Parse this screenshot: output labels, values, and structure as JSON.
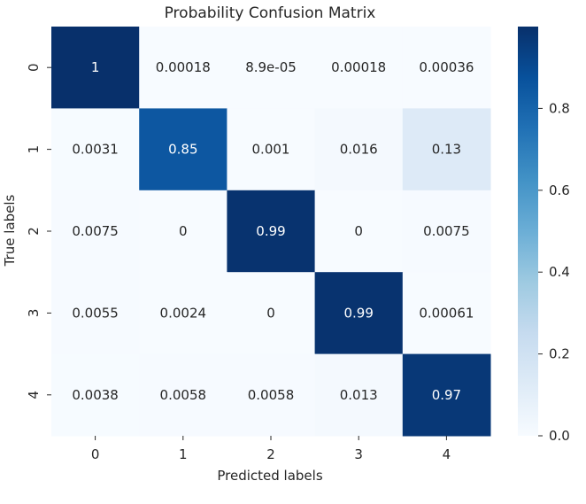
{
  "chart_data": {
    "type": "heatmap",
    "title": "Probability Confusion Matrix",
    "xlabel": "Predicted labels",
    "ylabel": "True labels",
    "x_categories": [
      "0",
      "1",
      "2",
      "3",
      "4"
    ],
    "y_categories": [
      "0",
      "1",
      "2",
      "3",
      "4"
    ],
    "values": [
      [
        1,
        0.00018,
        8.9e-05,
        0.00018,
        0.00036
      ],
      [
        0.0031,
        0.85,
        0.001,
        0.016,
        0.13
      ],
      [
        0.0075,
        0,
        0.99,
        0,
        0.0075
      ],
      [
        0.0055,
        0.0024,
        0,
        0.99,
        0.00061
      ],
      [
        0.0038,
        0.0058,
        0.0058,
        0.013,
        0.97
      ]
    ],
    "annotations": [
      [
        "1",
        "0.00018",
        "8.9e-05",
        "0.00018",
        "0.00036"
      ],
      [
        "0.0031",
        "0.85",
        "0.001",
        "0.016",
        "0.13"
      ],
      [
        "0.0075",
        "0",
        "0.99",
        "0",
        "0.0075"
      ],
      [
        "0.0055",
        "0.0024",
        "0",
        "0.99",
        "0.00061"
      ],
      [
        "0.0038",
        "0.0058",
        "0.0058",
        "0.013",
        "0.97"
      ]
    ],
    "colormap": "Blues",
    "colorbar": {
      "range": [
        0,
        1
      ],
      "ticks": [
        0.0,
        0.2,
        0.4,
        0.6,
        0.8
      ],
      "tick_labels": [
        "0.0",
        "0.2",
        "0.4",
        "0.6",
        "0.8"
      ]
    },
    "grid": false
  }
}
